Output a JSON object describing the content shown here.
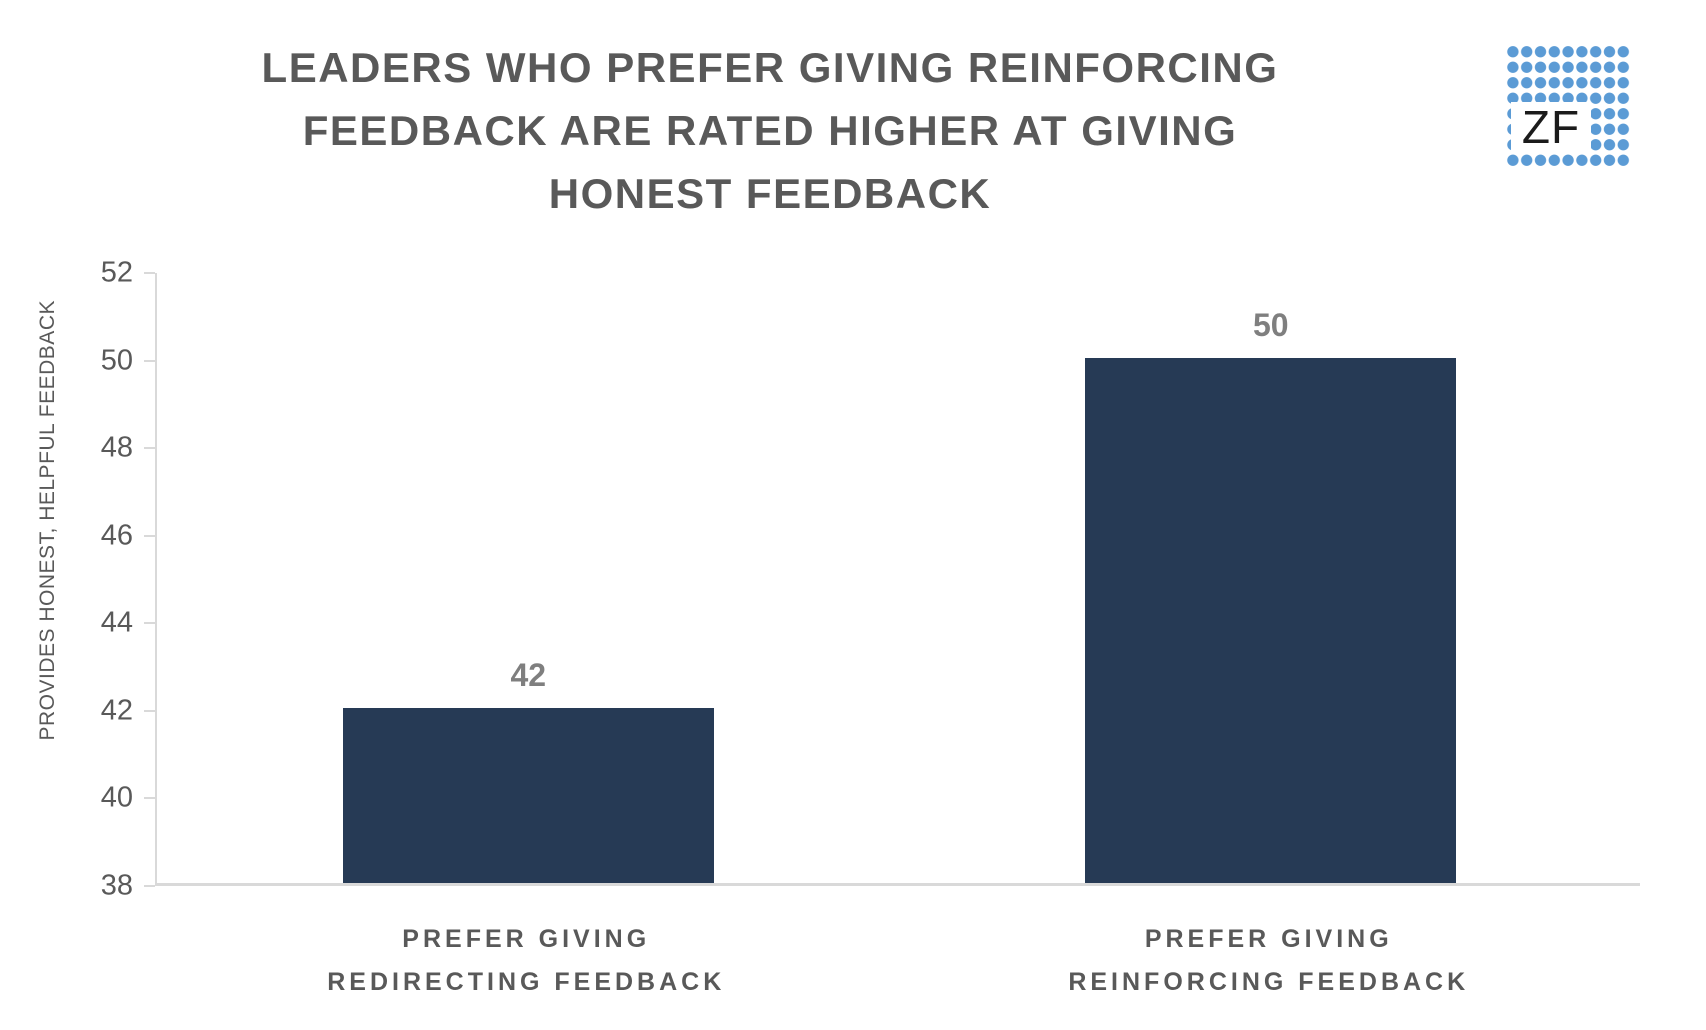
{
  "header": {
    "title_lines": [
      "LEADERS WHO PREFER GIVING REINFORCING",
      "FEEDBACK ARE RATED HIGHER AT GIVING",
      "HONEST FEEDBACK"
    ]
  },
  "logo": {
    "text": "ZF",
    "dot_color": "#5B9BD5"
  },
  "chart_data": {
    "type": "bar",
    "title": "LEADERS WHO PREFER GIVING REINFORCING FEEDBACK ARE RATED HIGHER AT GIVING HONEST FEEDBACK",
    "categories": [
      "PREFER GIVING REDIRECTING FEEDBACK",
      "PREFER GIVING REINFORCING FEEDBACK"
    ],
    "category_lines": [
      [
        "PREFER GIVING",
        "REDIRECTING FEEDBACK"
      ],
      [
        "PREFER GIVING",
        "REINFORCING FEEDBACK"
      ]
    ],
    "values": [
      42,
      50
    ],
    "data_labels": [
      "42",
      "50"
    ],
    "ylabel": "PROVIDES HONEST, HELPFUL FEEDBACK",
    "ylim": [
      38,
      52
    ],
    "yticks": [
      38,
      40,
      42,
      44,
      46,
      48,
      50,
      52
    ],
    "bar_color": "#263A55",
    "axis_color": "#D9D9D9",
    "text_color": "#595959",
    "data_label_color": "#7F7F7F",
    "grid": false,
    "legend": false
  }
}
